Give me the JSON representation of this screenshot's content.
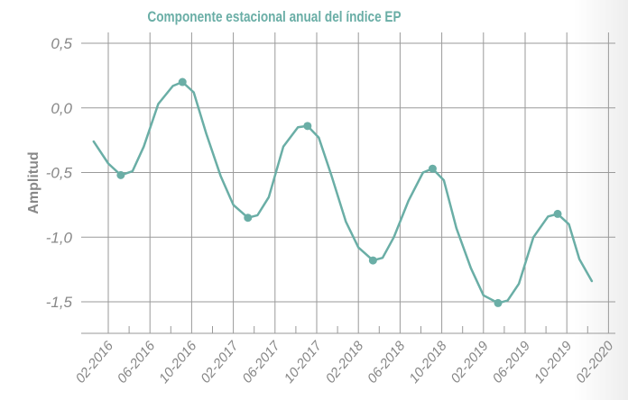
{
  "chart_data": {
    "type": "line",
    "title": "Componente estacional anual del índice EP",
    "ylabel": "Amplitud",
    "xlabel": "",
    "ylim": [
      -1.75,
      0.5
    ],
    "yticks": [
      "0,5",
      "0,0",
      "-0,5",
      "-1,0",
      "-1,5"
    ],
    "ytick_values": [
      0.5,
      0.0,
      -0.5,
      -1.0,
      -1.5
    ],
    "xticks": [
      "02-2016",
      "06-2016",
      "10-2016",
      "02-2017",
      "06-2017",
      "10-2017",
      "02-2018",
      "06-2018",
      "10-2018",
      "02-2019",
      "06-2019",
      "10-2019",
      "02-2020"
    ],
    "grid": true,
    "line_color": "#6aaea6",
    "series": [
      {
        "x": [
          -0.35,
          0.0,
          0.3,
          0.58,
          0.85,
          1.2,
          1.55,
          1.78,
          2.05,
          2.35,
          2.7,
          3.0,
          3.35,
          3.58,
          3.85,
          4.2,
          4.55,
          4.78,
          5.05,
          5.35,
          5.7,
          6.0,
          6.35,
          6.58,
          6.85,
          7.2,
          7.55,
          7.78,
          8.05,
          8.35,
          8.7,
          9.0,
          9.35,
          9.58,
          9.85,
          10.2,
          10.55,
          10.78,
          11.05,
          11.3,
          11.6
        ],
        "y": [
          -0.26,
          -0.43,
          -0.52,
          -0.49,
          -0.3,
          0.03,
          0.17,
          0.2,
          0.12,
          -0.2,
          -0.53,
          -0.75,
          -0.85,
          -0.83,
          -0.69,
          -0.3,
          -0.15,
          -0.14,
          -0.23,
          -0.52,
          -0.88,
          -1.08,
          -1.18,
          -1.16,
          -1.0,
          -0.72,
          -0.5,
          -0.47,
          -0.56,
          -0.93,
          -1.24,
          -1.45,
          -1.51,
          -1.49,
          -1.36,
          -1.0,
          -0.84,
          -0.82,
          -0.9,
          -1.17,
          -1.34
        ]
      }
    ],
    "markers": {
      "x": [
        0.3,
        1.78,
        3.35,
        4.78,
        6.35,
        7.78,
        9.35,
        10.78
      ],
      "y": [
        -0.52,
        0.2,
        -0.85,
        -0.14,
        -1.18,
        -0.47,
        -1.51,
        -0.82
      ]
    }
  }
}
